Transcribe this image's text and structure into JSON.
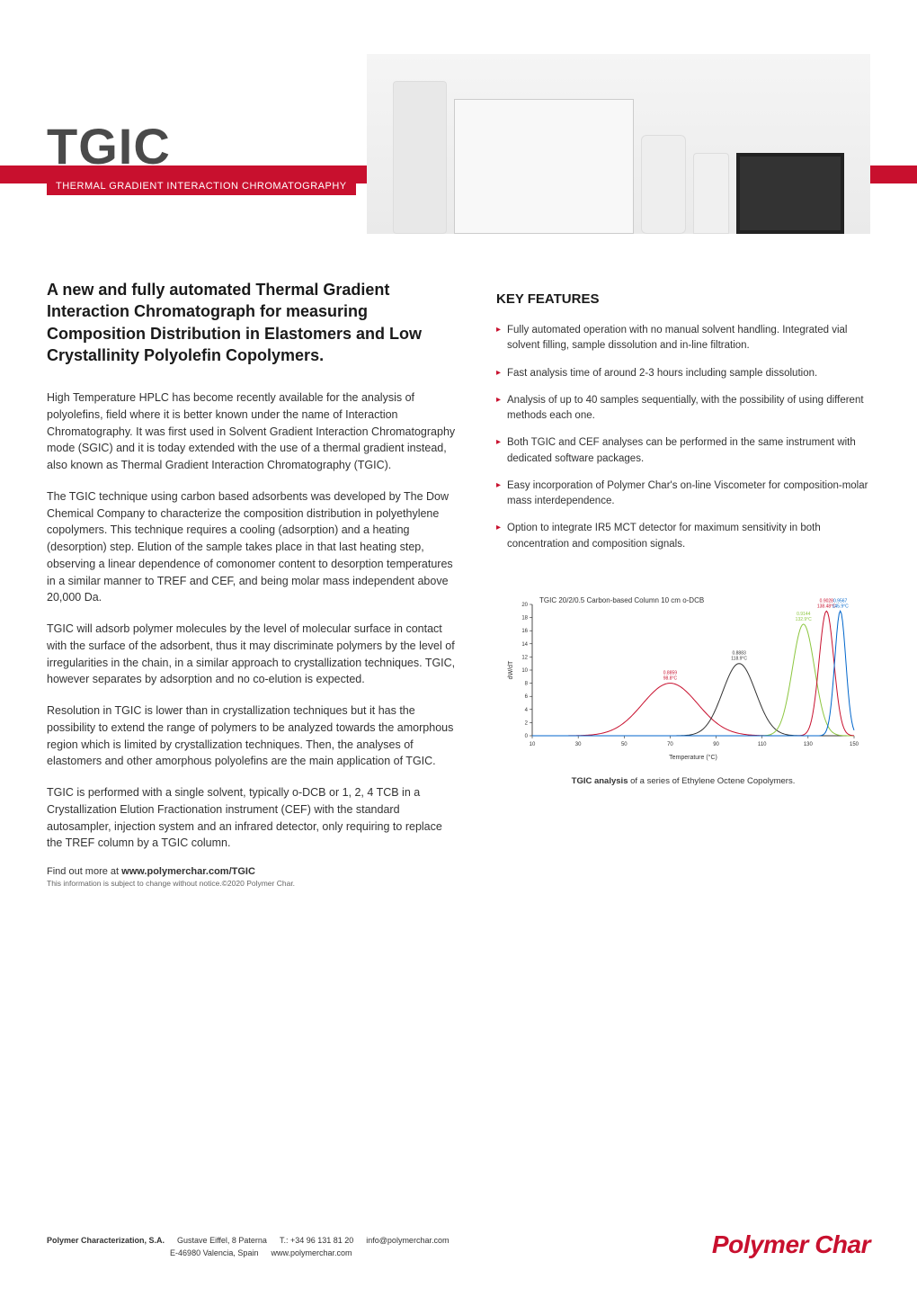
{
  "hero": {
    "title": "TGIC",
    "subtitle": "THERMAL GRADIENT INTERACTION CHROMATOGRAPHY",
    "stripe_color": "#c8102e"
  },
  "headline": "A new and fully automated Thermal Gradient Interaction Chromatograph for measuring Composition Distribution in Elastomers and Low Crystallinity Polyolefin Copolymers.",
  "paragraphs": [
    "High Temperature HPLC has become recently available for the analysis of polyolefins, field where it is better known under the name of Interaction Chromatography. It was first used in Solvent Gradient Interaction Chromatography mode (SGIC) and it is today extended with the use of a thermal gradient instead, also known as Thermal Gradient Interaction Chromatography (TGIC).",
    "The TGIC technique using carbon based adsorbents was developed by The Dow Chemical Company to characterize the composition distribution in polyethylene copolymers. This technique requires a cooling (adsorption) and a heating (desorption) step. Elution of the sample takes place in that last heating step, observing a linear dependence of comonomer content to desorption temperatures in a similar manner to TREF and CEF, and being molar mass independent above 20,000 Da.",
    "TGIC will adsorb polymer molecules by the level of molecular surface in contact with the surface of the adsorbent, thus it may discriminate polymers by the level of irregularities in the chain, in a similar approach to crystallization techniques. TGIC, however separates by adsorption and no co-elution is expected.",
    "Resolution in TGIC is lower than in crystallization techniques but it has the possibility to extend the range of polymers to be analyzed towards the amorphous region which is limited by crystallization techniques. Then, the analyses of elastomers and other amorphous polyolefins are the main application of TGIC.",
    "TGIC is performed with a single solvent, typically o-DCB or 1, 2, 4 TCB in a Crystallization Elution Fractionation instrument (CEF) with the standard autosampler, injection system and an infrared detector, only requiring to replace the TREF column by a TGIC column."
  ],
  "link_prefix": "Find out more at ",
  "link_url": "www.polymerchar.com/TGIC",
  "disclaimer": "This information is subject to change without notice.©2020 Polymer Char.",
  "features_title": "KEY FEATURES",
  "features": [
    "Fully automated operation with no manual solvent handling. Integrated vial solvent filling, sample dissolution and in-line filtration.",
    "Fast analysis time of around 2-3 hours including sample dissolution.",
    "Analysis of up to 40 samples sequentially, with the possibility of using different methods each one.",
    "Both TGIC and CEF analyses can be performed in the same instrument with dedicated software packages.",
    "Easy incorporation of Polymer Char's on-line Viscometer for composition-molar mass interdependence.",
    "Option to integrate IR5 MCT detector for maximum sensitivity in both concentration and composition signals."
  ],
  "chart": {
    "type": "line",
    "title": "TGIC 20/2/0.5 Carbon-based Column 10 cm o-DCB",
    "title_fontsize": 8,
    "xlabel": "Temperature (°C)",
    "ylabel": "dW/dT",
    "label_fontsize": 9,
    "xlim": [
      10,
      150
    ],
    "ylim": [
      0,
      20
    ],
    "xtick_step": 20,
    "ytick_step": 2,
    "background_color": "#ffffff",
    "axis_color": "#000000",
    "series": [
      {
        "color": "#c8102e",
        "peak_x": 70,
        "peak_y": 8,
        "width": 30,
        "label": "0.8859\n98.8°C"
      },
      {
        "color": "#333333",
        "peak_x": 100,
        "peak_y": 11,
        "width": 18,
        "label": "0.8883\n118.9°C"
      },
      {
        "color": "#8cc63f",
        "peak_x": 128,
        "peak_y": 17,
        "width": 12,
        "label": "0.9144\n132.9°C"
      },
      {
        "color": "#c8102e",
        "peak_x": 138,
        "peak_y": 19,
        "width": 8,
        "label": "0.9028\n138.48°C"
      },
      {
        "color": "#0066cc",
        "peak_x": 144,
        "peak_y": 19,
        "width": 6,
        "label": "0.9567\n145.9°C"
      }
    ],
    "caption_bold": "TGIC analysis",
    "caption_rest": " of a series of Ethylene Octene Copolymers."
  },
  "footer": {
    "company": "Polymer Characterization, S.A.",
    "address1": "Gustave Eiffel, 8 Paterna",
    "address2": "E-46980 Valencia, Spain",
    "phone": "T.: +34 96 131 81 20",
    "email": "info@polymerchar.com",
    "website": "www.polymerchar.com",
    "logo_text": "Polymer Char",
    "logo_color": "#c8102e"
  }
}
